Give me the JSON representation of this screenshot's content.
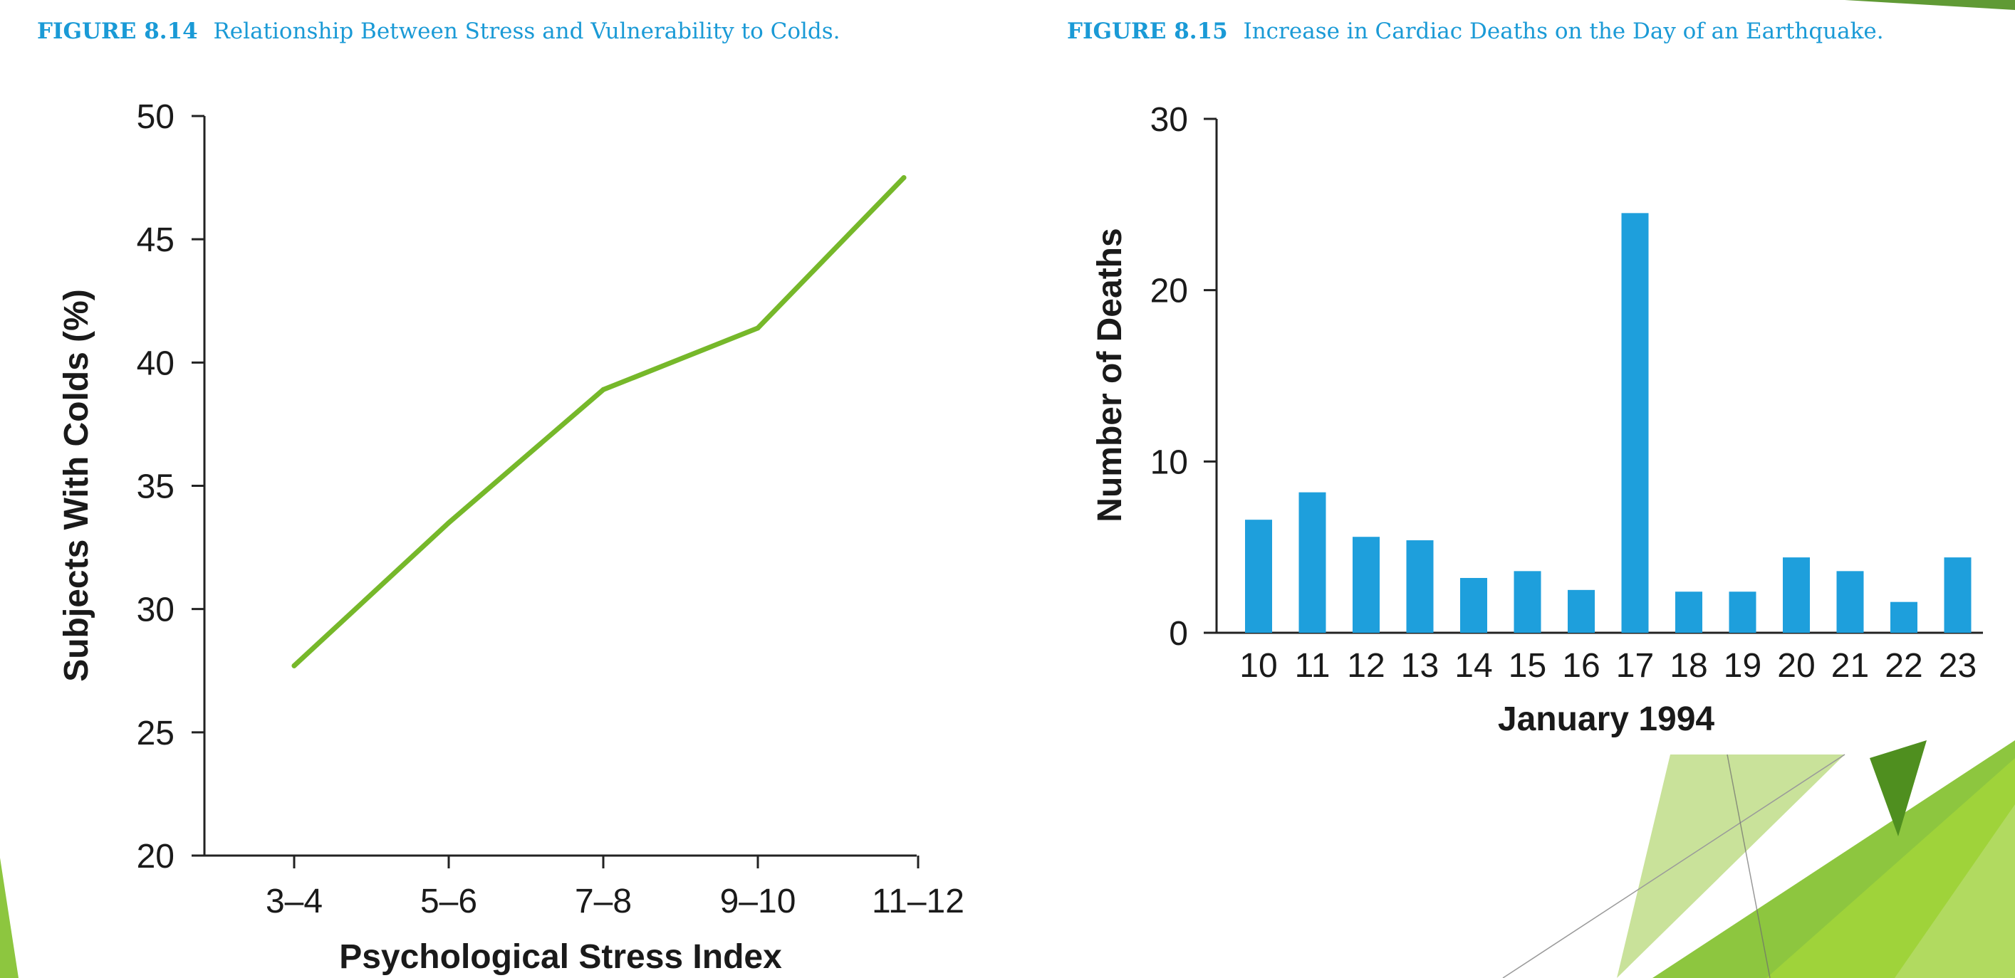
{
  "colors": {
    "caption": "#1a9ad6",
    "line": "#76b82a",
    "bar": "#1e9fdc",
    "axis": "#222222",
    "text": "#1a1a1a",
    "deco_light": "#c9e29a",
    "deco_mid": "#8dc63f",
    "deco_dark": "#4f8f1f",
    "deco_lime": "#9fd33a"
  },
  "captions": [
    {
      "number": "FIGURE 8.14",
      "text": "Relationship Between Stress and Vulnerability to Colds."
    },
    {
      "number": "FIGURE 8.15",
      "text": "Increase in Cardiac Deaths on the Day of an Earthquake."
    }
  ],
  "chart_data": [
    {
      "type": "line",
      "title": "Relationship Between Stress and Vulnerability to Colds.",
      "categories": [
        "3–4",
        "5–6",
        "7–8",
        "9–10",
        "11–12"
      ],
      "values": [
        27.7,
        33.5,
        38.9,
        41.4,
        47.5
      ],
      "xlabel": "Psychological Stress Index",
      "ylabel": "Subjects With Colds (%)",
      "ylim": [
        20,
        50
      ],
      "yticks": [
        "20",
        "25",
        "30",
        "35",
        "40",
        "45",
        "50"
      ],
      "grid": false,
      "legend": "none"
    },
    {
      "type": "bar",
      "title": "Increase in Cardiac Deaths on the Day of an Earthquake.",
      "categories": [
        "10",
        "11",
        "12",
        "13",
        "14",
        "15",
        "16",
        "17",
        "18",
        "19",
        "20",
        "21",
        "22",
        "23"
      ],
      "values": [
        6.6,
        8.2,
        5.6,
        5.4,
        3.2,
        3.6,
        2.5,
        24.5,
        2.4,
        2.4,
        4.4,
        3.6,
        1.8,
        4.4
      ],
      "xlabel": "January 1994",
      "ylabel": "Number of Deaths",
      "ylim": [
        0,
        30
      ],
      "yticks": [
        "0",
        "10",
        "20",
        "30"
      ],
      "grid": false,
      "legend": "none"
    }
  ]
}
